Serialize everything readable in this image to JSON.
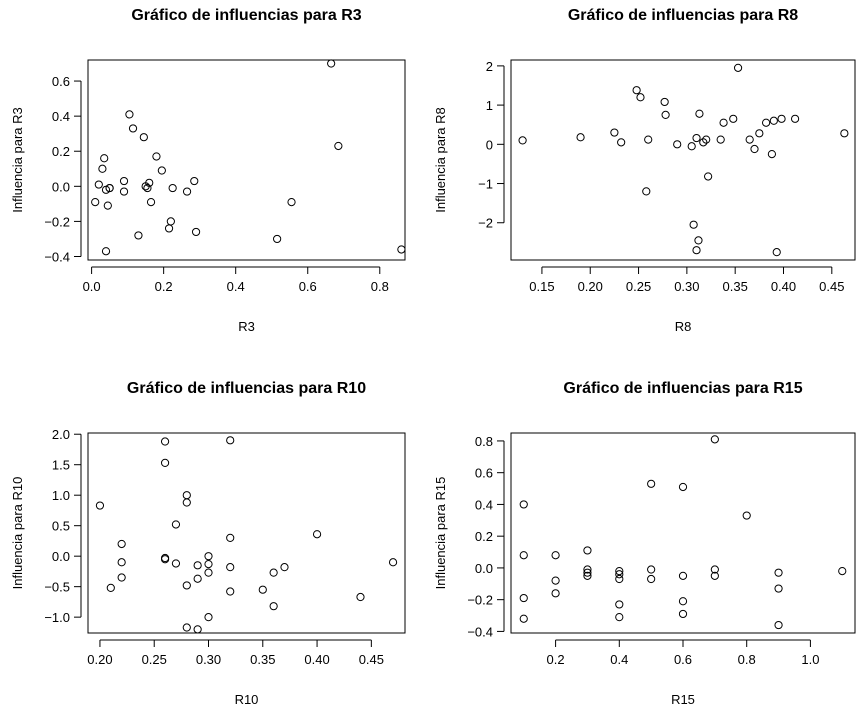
{
  "chart_data": [
    {
      "type": "scatter",
      "title": "Gráfico de influencias para R3",
      "xlabel": "R3",
      "ylabel": "Influencia para R3",
      "xlim": [
        -0.01,
        0.87
      ],
      "ylim": [
        -0.42,
        0.72
      ],
      "xticks": [
        0.0,
        0.2,
        0.4,
        0.6,
        0.8
      ],
      "xtick_labels": [
        "0.0",
        "0.2",
        "0.4",
        "0.6",
        "0.8"
      ],
      "yticks": [
        -0.4,
        -0.2,
        0.0,
        0.2,
        0.4,
        0.6
      ],
      "ytick_labels": [
        "−0.4",
        "−0.2",
        "0.0",
        "0.2",
        "0.4",
        "0.6"
      ],
      "points": [
        {
          "x": 0.01,
          "y": -0.09
        },
        {
          "x": 0.02,
          "y": 0.01
        },
        {
          "x": 0.03,
          "y": 0.1
        },
        {
          "x": 0.035,
          "y": 0.16
        },
        {
          "x": 0.04,
          "y": -0.02
        },
        {
          "x": 0.04,
          "y": -0.37
        },
        {
          "x": 0.045,
          "y": -0.11
        },
        {
          "x": 0.05,
          "y": -0.01
        },
        {
          "x": 0.05,
          "y": -0.01
        },
        {
          "x": 0.09,
          "y": 0.03
        },
        {
          "x": 0.09,
          "y": -0.03
        },
        {
          "x": 0.105,
          "y": 0.41
        },
        {
          "x": 0.115,
          "y": 0.33
        },
        {
          "x": 0.13,
          "y": -0.28
        },
        {
          "x": 0.145,
          "y": 0.28
        },
        {
          "x": 0.15,
          "y": 0.0
        },
        {
          "x": 0.155,
          "y": -0.01
        },
        {
          "x": 0.16,
          "y": 0.02
        },
        {
          "x": 0.165,
          "y": -0.09
        },
        {
          "x": 0.18,
          "y": 0.17
        },
        {
          "x": 0.195,
          "y": 0.09
        },
        {
          "x": 0.215,
          "y": -0.24
        },
        {
          "x": 0.22,
          "y": -0.2
        },
        {
          "x": 0.225,
          "y": -0.01
        },
        {
          "x": 0.265,
          "y": -0.03
        },
        {
          "x": 0.285,
          "y": 0.03
        },
        {
          "x": 0.29,
          "y": -0.26
        },
        {
          "x": 0.515,
          "y": -0.3
        },
        {
          "x": 0.555,
          "y": -0.09
        },
        {
          "x": 0.665,
          "y": 0.7
        },
        {
          "x": 0.685,
          "y": 0.23
        },
        {
          "x": 0.86,
          "y": -0.36
        }
      ]
    },
    {
      "type": "scatter",
      "title": "Gráfico de influencias para R8",
      "xlabel": "R8",
      "ylabel": "Influencia para R8",
      "xlim": [
        0.118,
        0.474
      ],
      "ylim": [
        -2.95,
        2.15
      ],
      "xticks": [
        0.15,
        0.2,
        0.25,
        0.3,
        0.35,
        0.4,
        0.45
      ],
      "xtick_labels": [
        "0.15",
        "0.20",
        "0.25",
        "0.30",
        "0.35",
        "0.40",
        "0.45"
      ],
      "yticks": [
        -2,
        -1,
        0,
        1,
        2
      ],
      "ytick_labels": [
        "−2",
        "−1",
        "0",
        "1",
        "2"
      ],
      "points": [
        {
          "x": 0.13,
          "y": 0.1
        },
        {
          "x": 0.19,
          "y": 0.18
        },
        {
          "x": 0.225,
          "y": 0.3
        },
        {
          "x": 0.232,
          "y": 0.05
        },
        {
          "x": 0.248,
          "y": 1.38
        },
        {
          "x": 0.252,
          "y": 1.2
        },
        {
          "x": 0.258,
          "y": -1.2
        },
        {
          "x": 0.26,
          "y": 0.12
        },
        {
          "x": 0.277,
          "y": 1.08
        },
        {
          "x": 0.278,
          "y": 0.75
        },
        {
          "x": 0.29,
          "y": 0.0
        },
        {
          "x": 0.305,
          "y": -0.05
        },
        {
          "x": 0.307,
          "y": -2.05
        },
        {
          "x": 0.31,
          "y": 0.16
        },
        {
          "x": 0.31,
          "y": -2.7
        },
        {
          "x": 0.312,
          "y": -2.45
        },
        {
          "x": 0.313,
          "y": 0.78
        },
        {
          "x": 0.317,
          "y": 0.05
        },
        {
          "x": 0.32,
          "y": 0.12
        },
        {
          "x": 0.322,
          "y": -0.82
        },
        {
          "x": 0.335,
          "y": 0.12
        },
        {
          "x": 0.338,
          "y": 0.55
        },
        {
          "x": 0.348,
          "y": 0.65
        },
        {
          "x": 0.353,
          "y": 1.95
        },
        {
          "x": 0.365,
          "y": 0.12
        },
        {
          "x": 0.37,
          "y": -0.12
        },
        {
          "x": 0.375,
          "y": 0.28
        },
        {
          "x": 0.382,
          "y": 0.55
        },
        {
          "x": 0.388,
          "y": -0.25
        },
        {
          "x": 0.39,
          "y": 0.6
        },
        {
          "x": 0.393,
          "y": -2.75
        },
        {
          "x": 0.398,
          "y": 0.65
        },
        {
          "x": 0.412,
          "y": 0.65
        },
        {
          "x": 0.463,
          "y": 0.28
        }
      ]
    },
    {
      "type": "scatter",
      "title": "Gráfico de influencias para R10",
      "xlabel": "R10",
      "ylabel": "Influencia para R10",
      "xlim": [
        0.189,
        0.481
      ],
      "ylim": [
        -1.26,
        2.02
      ],
      "xticks": [
        0.2,
        0.25,
        0.3,
        0.35,
        0.4,
        0.45
      ],
      "xtick_labels": [
        "0.20",
        "0.25",
        "0.30",
        "0.35",
        "0.40",
        "0.45"
      ],
      "yticks": [
        -1.0,
        -0.5,
        0.0,
        0.5,
        1.0,
        1.5,
        2.0
      ],
      "ytick_labels": [
        "−1.0",
        "−0.5",
        "0.0",
        "0.5",
        "1.0",
        "1.5",
        "2.0"
      ],
      "points": [
        {
          "x": 0.2,
          "y": 0.83
        },
        {
          "x": 0.21,
          "y": -0.52
        },
        {
          "x": 0.22,
          "y": 0.2
        },
        {
          "x": 0.22,
          "y": -0.1
        },
        {
          "x": 0.22,
          "y": -0.35
        },
        {
          "x": 0.26,
          "y": 1.88
        },
        {
          "x": 0.26,
          "y": 1.53
        },
        {
          "x": 0.26,
          "y": -0.03
        },
        {
          "x": 0.26,
          "y": -0.05
        },
        {
          "x": 0.27,
          "y": 0.52
        },
        {
          "x": 0.27,
          "y": -0.12
        },
        {
          "x": 0.28,
          "y": 1.0
        },
        {
          "x": 0.28,
          "y": 0.88
        },
        {
          "x": 0.28,
          "y": -0.48
        },
        {
          "x": 0.28,
          "y": -1.17
        },
        {
          "x": 0.29,
          "y": -0.15
        },
        {
          "x": 0.29,
          "y": -0.37
        },
        {
          "x": 0.29,
          "y": -1.2
        },
        {
          "x": 0.3,
          "y": 0.0
        },
        {
          "x": 0.3,
          "y": -0.13
        },
        {
          "x": 0.3,
          "y": -0.27
        },
        {
          "x": 0.3,
          "y": -1.0
        },
        {
          "x": 0.32,
          "y": 1.9
        },
        {
          "x": 0.32,
          "y": 0.3
        },
        {
          "x": 0.32,
          "y": -0.18
        },
        {
          "x": 0.32,
          "y": -0.58
        },
        {
          "x": 0.35,
          "y": -0.55
        },
        {
          "x": 0.36,
          "y": -0.27
        },
        {
          "x": 0.36,
          "y": -0.82
        },
        {
          "x": 0.37,
          "y": -0.18
        },
        {
          "x": 0.4,
          "y": 0.36
        },
        {
          "x": 0.44,
          "y": -0.67
        },
        {
          "x": 0.47,
          "y": -0.1
        }
      ]
    },
    {
      "type": "scatter",
      "title": "Gráfico de influencias para R15",
      "xlabel": "R15",
      "ylabel": "Influencia para R15",
      "xlim": [
        0.06,
        1.14
      ],
      "ylim": [
        -0.41,
        0.85
      ],
      "xticks": [
        0.2,
        0.4,
        0.6,
        0.8,
        1.0
      ],
      "xtick_labels": [
        "0.2",
        "0.4",
        "0.6",
        "0.8",
        "1.0"
      ],
      "yticks": [
        -0.4,
        -0.2,
        0.0,
        0.2,
        0.4,
        0.6,
        0.8
      ],
      "ytick_labels": [
        "−0.4",
        "−0.2",
        "0.0",
        "0.2",
        "0.4",
        "0.6",
        "0.8"
      ],
      "points": [
        {
          "x": 0.1,
          "y": 0.4
        },
        {
          "x": 0.1,
          "y": 0.08
        },
        {
          "x": 0.1,
          "y": -0.19
        },
        {
          "x": 0.1,
          "y": -0.32
        },
        {
          "x": 0.2,
          "y": 0.08
        },
        {
          "x": 0.2,
          "y": -0.08
        },
        {
          "x": 0.2,
          "y": -0.16
        },
        {
          "x": 0.3,
          "y": 0.11
        },
        {
          "x": 0.3,
          "y": -0.01
        },
        {
          "x": 0.3,
          "y": -0.03
        },
        {
          "x": 0.3,
          "y": -0.05
        },
        {
          "x": 0.4,
          "y": -0.02
        },
        {
          "x": 0.4,
          "y": -0.04
        },
        {
          "x": 0.4,
          "y": -0.07
        },
        {
          "x": 0.4,
          "y": -0.23
        },
        {
          "x": 0.4,
          "y": -0.31
        },
        {
          "x": 0.5,
          "y": 0.53
        },
        {
          "x": 0.5,
          "y": -0.01
        },
        {
          "x": 0.5,
          "y": -0.07
        },
        {
          "x": 0.6,
          "y": 0.51
        },
        {
          "x": 0.6,
          "y": -0.05
        },
        {
          "x": 0.6,
          "y": -0.21
        },
        {
          "x": 0.6,
          "y": -0.29
        },
        {
          "x": 0.7,
          "y": 0.81
        },
        {
          "x": 0.7,
          "y": -0.01
        },
        {
          "x": 0.7,
          "y": -0.05
        },
        {
          "x": 0.8,
          "y": 0.33
        },
        {
          "x": 0.9,
          "y": -0.03
        },
        {
          "x": 0.9,
          "y": -0.13
        },
        {
          "x": 0.9,
          "y": -0.36
        },
        {
          "x": 1.1,
          "y": -0.02
        }
      ]
    }
  ]
}
